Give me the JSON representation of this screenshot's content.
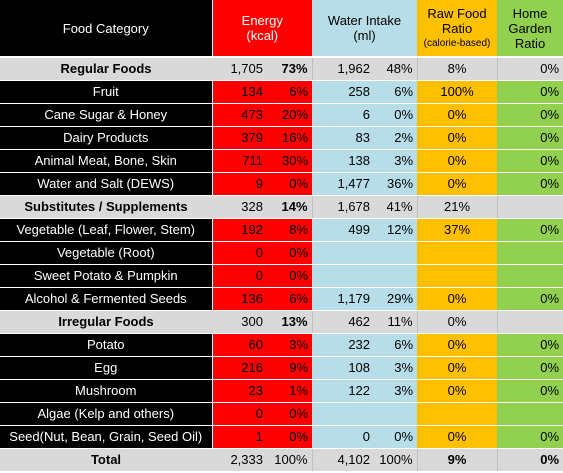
{
  "headers": {
    "category": "Food Category",
    "energy_l1": "Energy",
    "energy_l2": "(kcal)",
    "water_l1": "Water Intake",
    "water_l2": "(ml)",
    "raw_l1": "Raw Food",
    "raw_l2": "Ratio",
    "raw_l3": "(calorie-based)",
    "garden_l1": "Home",
    "garden_l2": "Garden",
    "garden_l3": "Ratio"
  },
  "rows": [
    {
      "kind": "group",
      "name": "Regular Foods",
      "kcal": "1,705",
      "kcal_pct": "73%",
      "water": "1,962",
      "water_pct": "48%",
      "raw": "8%",
      "garden": "0%"
    },
    {
      "kind": "item",
      "name": "Fruit",
      "kcal": "134",
      "kcal_pct": "6%",
      "water": "258",
      "water_pct": "6%",
      "raw": "100%",
      "garden": "0%"
    },
    {
      "kind": "item",
      "name": "Cane Sugar & Honey",
      "kcal": "473",
      "kcal_pct": "20%",
      "water": "6",
      "water_pct": "0%",
      "raw": "0%",
      "garden": "0%"
    },
    {
      "kind": "item",
      "name": "Dairy Products",
      "kcal": "379",
      "kcal_pct": "16%",
      "water": "83",
      "water_pct": "2%",
      "raw": "0%",
      "garden": "0%"
    },
    {
      "kind": "item",
      "name": "Animal Meat, Bone, Skin",
      "kcal": "711",
      "kcal_pct": "30%",
      "water": "138",
      "water_pct": "3%",
      "raw": "0%",
      "garden": "0%"
    },
    {
      "kind": "item",
      "name": "Water and Salt (DEWS)",
      "kcal": "9",
      "kcal_pct": "0%",
      "water": "1,477",
      "water_pct": "36%",
      "raw": "0%",
      "garden": "0%"
    },
    {
      "kind": "group",
      "name": "Substitutes / Supplements",
      "kcal": "328",
      "kcal_pct": "14%",
      "water": "1,678",
      "water_pct": "41%",
      "raw": "21%",
      "garden": ""
    },
    {
      "kind": "item",
      "name": "Vegetable (Leaf, Flower, Stem)",
      "kcal": "192",
      "kcal_pct": "8%",
      "water": "499",
      "water_pct": "12%",
      "raw": "37%",
      "garden": "0%"
    },
    {
      "kind": "item",
      "name": "Vegetable (Root)",
      "kcal": "0",
      "kcal_pct": "0%",
      "water": "",
      "water_pct": "",
      "raw": "",
      "garden": ""
    },
    {
      "kind": "item",
      "name": "Sweet Potato & Pumpkin",
      "kcal": "0",
      "kcal_pct": "0%",
      "water": "",
      "water_pct": "",
      "raw": "",
      "garden": ""
    },
    {
      "kind": "item",
      "name": "Alcohol & Fermented Seeds",
      "kcal": "136",
      "kcal_pct": "6%",
      "water": "1,179",
      "water_pct": "29%",
      "raw": "0%",
      "garden": "0%"
    },
    {
      "kind": "group",
      "name": "Irregular Foods",
      "kcal": "300",
      "kcal_pct": "13%",
      "water": "462",
      "water_pct": "11%",
      "raw": "0%",
      "garden": ""
    },
    {
      "kind": "item",
      "name": "Potato",
      "kcal": "60",
      "kcal_pct": "3%",
      "water": "232",
      "water_pct": "6%",
      "raw": "0%",
      "garden": "0%"
    },
    {
      "kind": "item",
      "name": "Egg",
      "kcal": "216",
      "kcal_pct": "9%",
      "water": "108",
      "water_pct": "3%",
      "raw": "0%",
      "garden": "0%"
    },
    {
      "kind": "item",
      "name": "Mushroom",
      "kcal": "23",
      "kcal_pct": "1%",
      "water": "122",
      "water_pct": "3%",
      "raw": "0%",
      "garden": "0%"
    },
    {
      "kind": "item",
      "name": "Algae (Kelp and others)",
      "kcal": "0",
      "kcal_pct": "0%",
      "water": "",
      "water_pct": "",
      "raw": "",
      "garden": ""
    },
    {
      "kind": "item",
      "name": "Seed(Nut, Bean, Grain, Seed Oil)",
      "kcal": "1",
      "kcal_pct": "0%",
      "water": "0",
      "water_pct": "0%",
      "raw": "0%",
      "garden": "0%"
    },
    {
      "kind": "total",
      "name": "Total",
      "kcal": "2,333",
      "kcal_pct": "100%",
      "water": "4,102",
      "water_pct": "100%",
      "raw": "9%",
      "garden": "0%"
    }
  ],
  "colors": {
    "header_black": "#000000",
    "group_gray": "#d9d9d9",
    "energy_red": "#ff0000",
    "water_blue": "#b7dde8",
    "raw_orange": "#ffc000",
    "garden_green": "#92d050"
  }
}
